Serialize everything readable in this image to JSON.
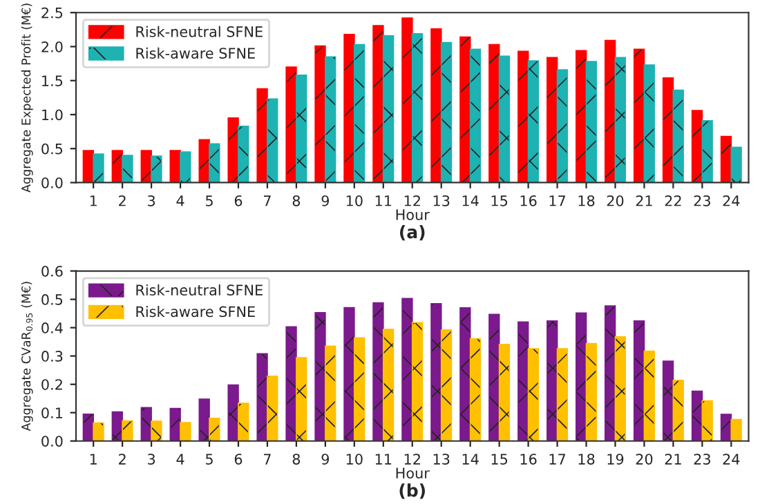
{
  "chart_data": [
    {
      "type": "bar",
      "xlabel": "Hour",
      "ylabel": "Aggregate Expected Profit (M€)",
      "annotations": [
        "(a)"
      ],
      "categories": [
        "1",
        "2",
        "3",
        "4",
        "5",
        "6",
        "7",
        "8",
        "9",
        "10",
        "11",
        "12",
        "13",
        "14",
        "15",
        "16",
        "17",
        "18",
        "20",
        "21",
        "22",
        "23",
        "24"
      ],
      "series": [
        {
          "name": "Risk-neutral SFNE",
          "color": "#ff0000",
          "values": [
            0.47,
            0.47,
            0.47,
            0.47,
            0.63,
            0.95,
            1.38,
            1.7,
            2.01,
            2.18,
            2.31,
            2.42,
            2.26,
            2.14,
            2.03,
            1.93,
            1.84,
            1.94,
            2.09,
            1.96,
            1.54,
            1.06,
            0.68
          ]
        },
        {
          "name": "Risk-aware SFNE",
          "color": "#1fb2b2",
          "values": [
            0.42,
            0.4,
            0.39,
            0.45,
            0.57,
            0.83,
            1.23,
            1.58,
            1.85,
            2.03,
            2.16,
            2.19,
            2.06,
            1.96,
            1.86,
            1.79,
            1.66,
            1.78,
            1.84,
            1.73,
            1.36,
            0.91,
            0.52
          ]
        }
      ],
      "ylim": [
        0,
        2.5
      ],
      "yticks": [
        {
          "value": 0,
          "label": "0.0"
        },
        {
          "value": 0.5,
          "label": "0.5"
        },
        {
          "value": 1,
          "label": "1.0"
        },
        {
          "value": 1.5,
          "label": "1.5"
        },
        {
          "value": 2,
          "label": "2.0"
        },
        {
          "value": 2.5,
          "label": "2.5"
        }
      ],
      "legend": "top left",
      "grid": false
    },
    {
      "type": "bar",
      "xlabel": "Hour",
      "ylabel": "Aggregate CVaR$_{0.95}$ (M€)",
      "annotations": [
        "(b)"
      ],
      "categories": [
        "1",
        "2",
        "3",
        "4",
        "5",
        "6",
        "7",
        "8",
        "9",
        "10",
        "11",
        "12",
        "13",
        "14",
        "15",
        "16",
        "17",
        "18",
        "19",
        "20",
        "21",
        "23",
        "24"
      ],
      "series": [
        {
          "name": "Risk-neutral SFNE",
          "color": "#7b1a8c",
          "values": [
            0.095,
            0.103,
            0.118,
            0.115,
            0.148,
            0.198,
            0.308,
            0.403,
            0.453,
            0.471,
            0.488,
            0.503,
            0.485,
            0.47,
            0.447,
            0.42,
            0.424,
            0.452,
            0.477,
            0.424,
            0.282,
            0.176,
            0.094
          ]
        },
        {
          "name": "Risk-aware SFNE",
          "color": "#ffc000",
          "values": [
            0.064,
            0.071,
            0.07,
            0.065,
            0.08,
            0.133,
            0.229,
            0.294,
            0.335,
            0.364,
            0.394,
            0.418,
            0.392,
            0.361,
            0.341,
            0.326,
            0.326,
            0.344,
            0.368,
            0.317,
            0.214,
            0.142,
            0.076
          ]
        }
      ],
      "ylim": [
        0,
        0.6
      ],
      "yticks": [
        {
          "value": 0,
          "label": "0.0"
        },
        {
          "value": 0.1,
          "label": "0.1"
        },
        {
          "value": 0.2,
          "label": "0.2"
        },
        {
          "value": 0.3,
          "label": "0.3"
        },
        {
          "value": 0.4,
          "label": "0.4"
        },
        {
          "value": 0.5,
          "label": "0.5"
        },
        {
          "value": 0.6,
          "label": "0.6"
        }
      ],
      "legend": "top left",
      "grid": false
    }
  ]
}
